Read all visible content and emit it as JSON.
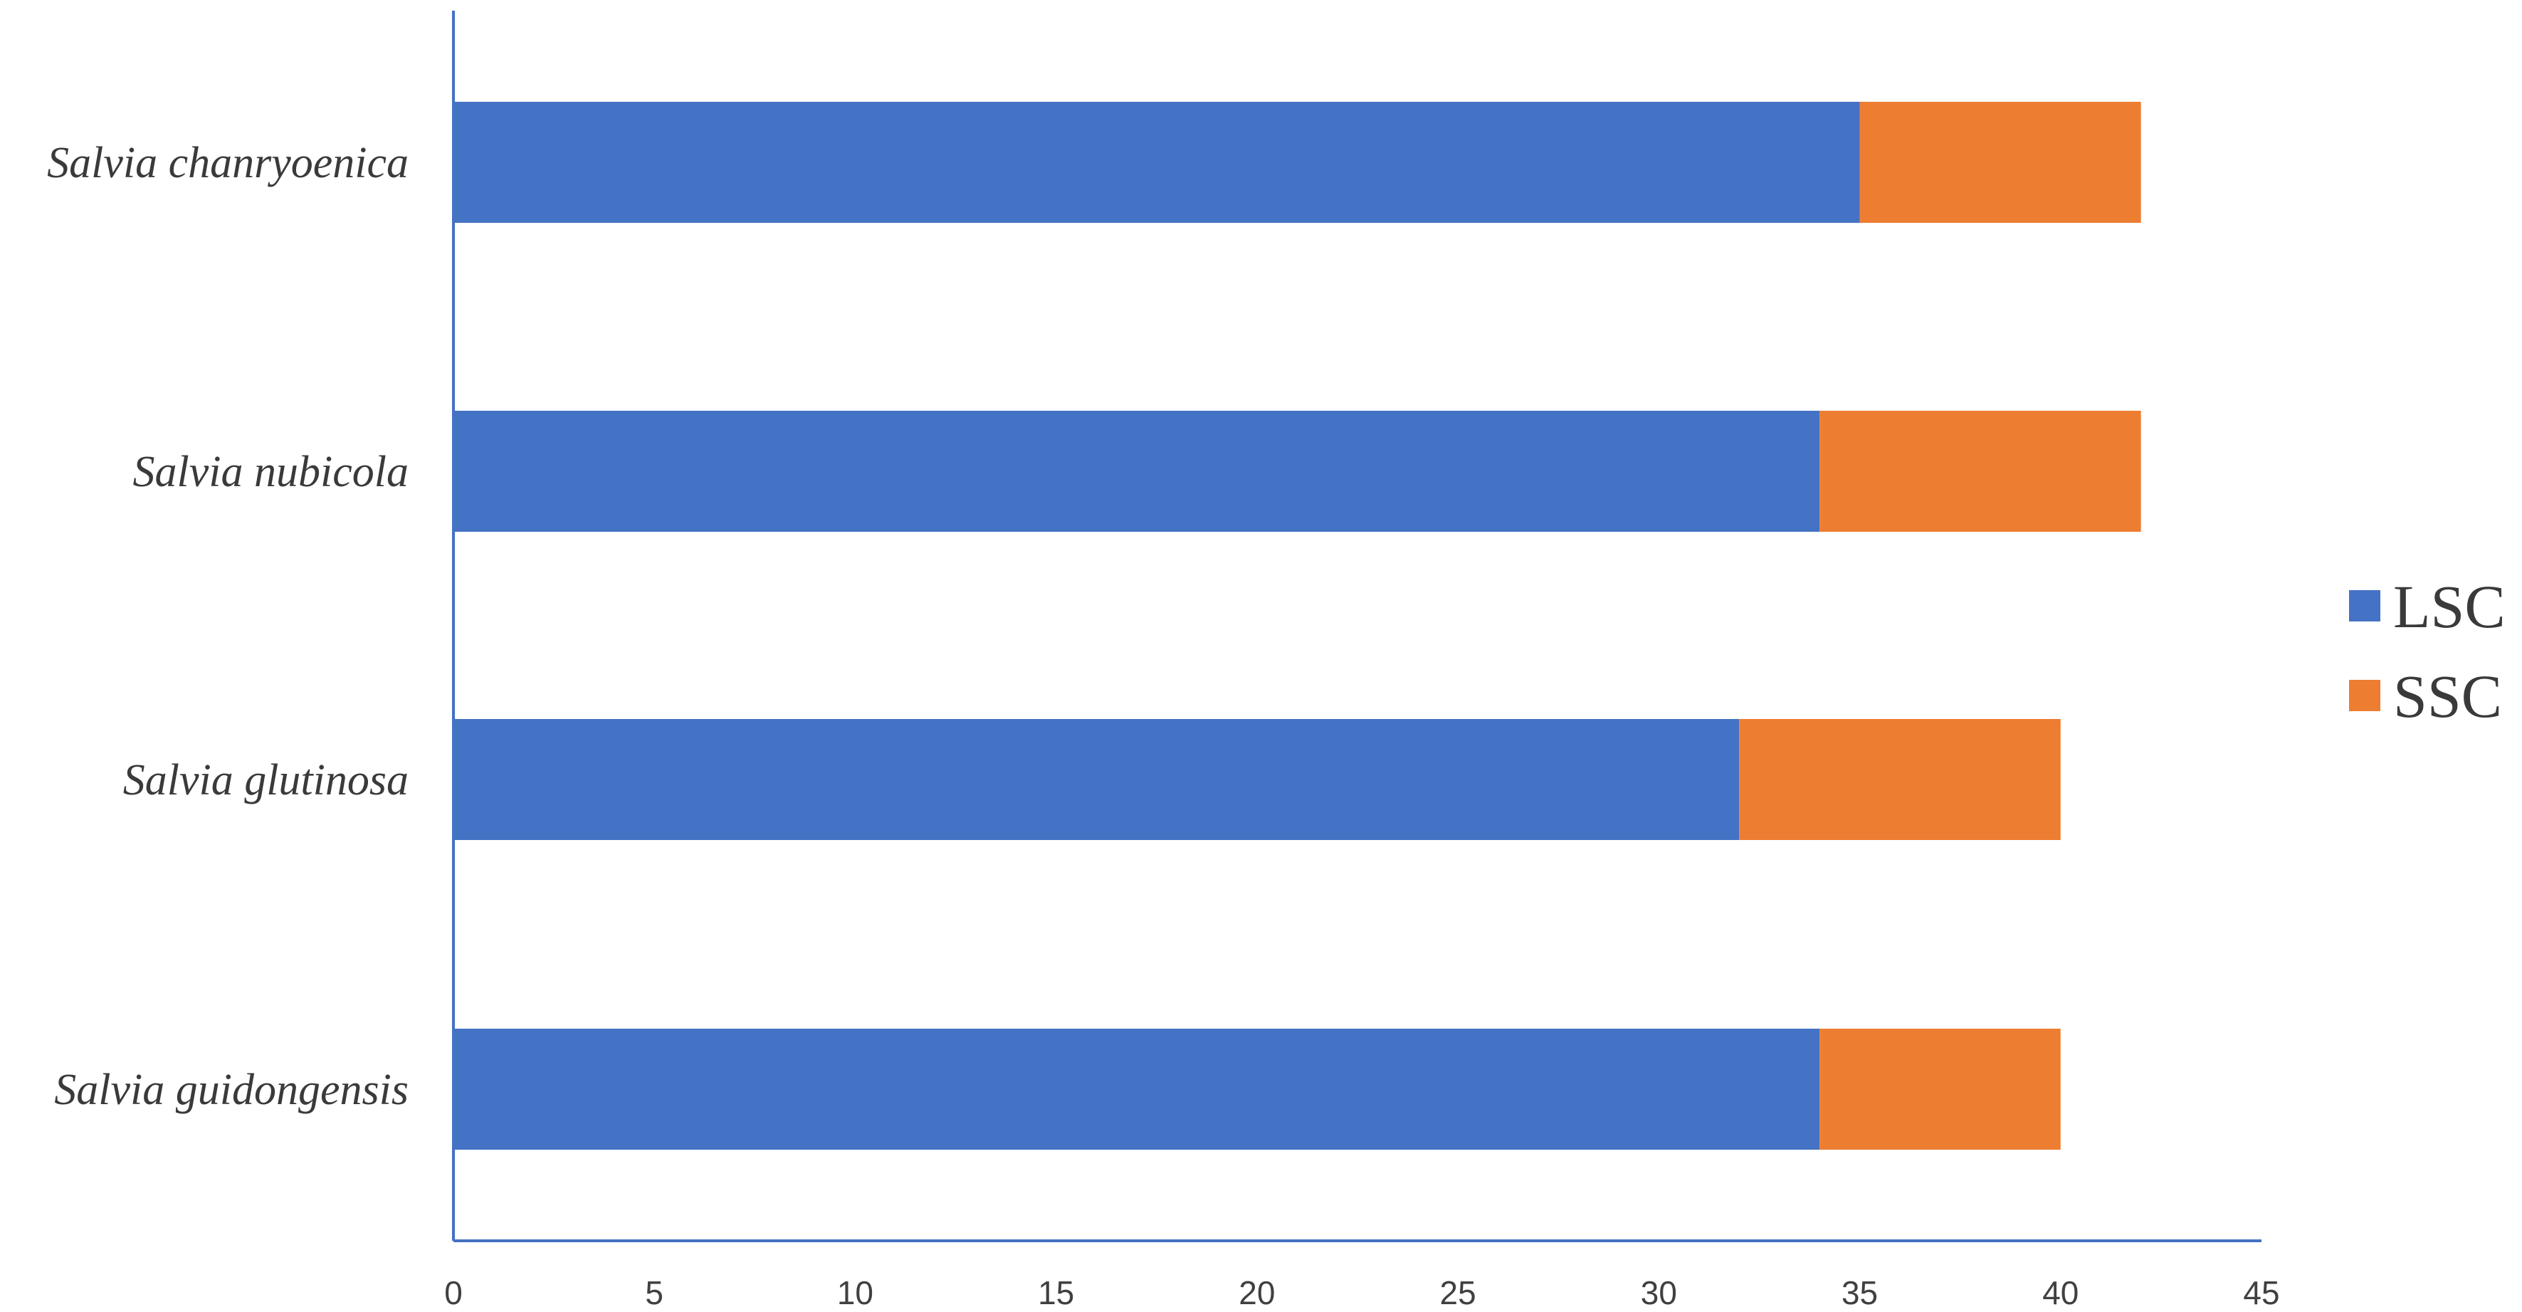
{
  "chart_data": {
    "type": "bar",
    "orientation": "horizontal",
    "stacked": true,
    "categories": [
      "Salvia chanryoenica",
      "Salvia nubicola",
      "Salvia glutinosa",
      "Salvia guidongensis"
    ],
    "series": [
      {
        "name": "LSC",
        "values": [
          35,
          34,
          32,
          34
        ],
        "color": "#4472C4"
      },
      {
        "name": "SSC",
        "values": [
          7,
          8,
          8,
          6
        ],
        "color": "#ED7D31"
      }
    ],
    "xlim": [
      0,
      45
    ],
    "xticks": [
      0,
      5,
      10,
      15,
      20,
      25,
      30,
      35,
      40,
      45
    ],
    "xlabel": "",
    "ylabel": "",
    "title": "",
    "grid": false,
    "legend_position": "right",
    "axis_color": "#4472C4"
  }
}
